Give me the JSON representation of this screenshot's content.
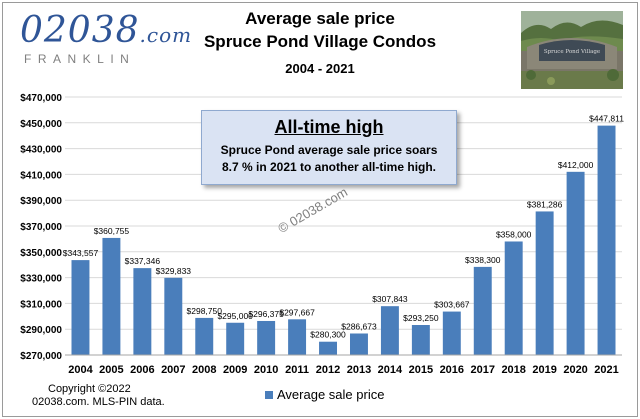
{
  "logo": {
    "main": "02038",
    "suffix": ".com",
    "sub": "FRANKLIN"
  },
  "titles": {
    "line1": "Average sale price",
    "line2": "Spruce Pond Village Condos",
    "line3": "2004 - 2021"
  },
  "callout": {
    "heading": "All-time high",
    "line1": "Spruce Pond average sale price soars",
    "line2": "8.7 % in 2021 to another all-time high."
  },
  "watermark": "© 02038.com",
  "footer": {
    "line1": "Copyright ©2022",
    "line2": "02038.com.  MLS-PIN data."
  },
  "colors": {
    "bar": "#4a7ebb",
    "title_text": "#000000",
    "logo": "#2f5597",
    "callout_fill": "#dae3f3"
  },
  "chart_data": {
    "type": "bar",
    "categories": [
      "2004",
      "2005",
      "2006",
      "2007",
      "2008",
      "2009",
      "2010",
      "2011",
      "2012",
      "2013",
      "2014",
      "2015",
      "2016",
      "2017",
      "2018",
      "2019",
      "2020",
      "2021"
    ],
    "series": [
      {
        "name": "Average sale price",
        "values": [
          343557,
          360755,
          337346,
          329833,
          298750,
          295000,
          296375,
          297667,
          280300,
          286673,
          307843,
          293250,
          303667,
          338300,
          358000,
          381286,
          412000,
          447811
        ],
        "labels": [
          "$343,557",
          "$360,755",
          "$337,346",
          "$329,833",
          "$298,750",
          "$295,000",
          "$296,375",
          "$297,667",
          "$280,300",
          "$286,673",
          "$307,843",
          "$293,250",
          "$303,667",
          "$338,300",
          "$358,000",
          "$381,286",
          "$412,000",
          "$447,811"
        ]
      }
    ],
    "title": "Average sale price",
    "subtitle": "Spruce Pond Village Condos",
    "xlabel": "",
    "ylabel": "",
    "ylim": [
      270000,
      470000
    ],
    "yticks": [
      270000,
      290000,
      310000,
      330000,
      350000,
      370000,
      390000,
      410000,
      430000,
      450000,
      470000
    ],
    "ytick_labels": [
      "$270,000",
      "$290,000",
      "$310,000",
      "$330,000",
      "$350,000",
      "$370,000",
      "$390,000",
      "$410,000",
      "$430,000",
      "$450,000",
      "$470,000"
    ],
    "grid": true,
    "legend": "bottom"
  }
}
